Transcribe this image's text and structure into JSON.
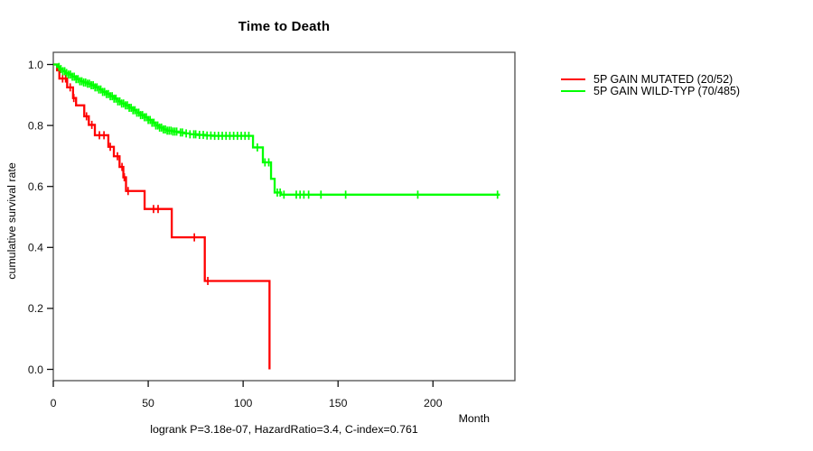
{
  "chart_data": {
    "type": "line",
    "chart_kind": "kaplan-meier-step-curves",
    "title": "Time to Death",
    "xlabel": "Month",
    "ylabel": "cumulative survival rate",
    "footnote": "logrank P=3.18e-07, HazardRatio=3.4, C-index=0.761",
    "x_ticks": [
      0,
      50,
      100,
      150,
      200
    ],
    "y_ticks": [
      0.0,
      0.2,
      0.4,
      0.6,
      0.8,
      1.0
    ],
    "xlim": [
      0,
      243
    ],
    "ylim": [
      0.0,
      1.0
    ],
    "grid": false,
    "legend_position": "right-outside",
    "legend": [
      {
        "label": "5P GAIN MUTATED (20/52)",
        "color": "#ff0000"
      },
      {
        "label": "5P GAIN WILD-TYP (70/485)",
        "color": "#00ff00"
      }
    ],
    "series": [
      {
        "name": "5P GAIN MUTATED (20/52)",
        "color": "#ff0000",
        "steps": [
          [
            0,
            1.0
          ],
          [
            2,
            0.981
          ],
          [
            3.2,
            0.954
          ],
          [
            7.3,
            0.925
          ],
          [
            10.4,
            0.89
          ],
          [
            12,
            0.866
          ],
          [
            16.3,
            0.83
          ],
          [
            18.7,
            0.802
          ],
          [
            21.9,
            0.768
          ],
          [
            29,
            0.73
          ],
          [
            31.9,
            0.699
          ],
          [
            34.9,
            0.664
          ],
          [
            36.9,
            0.63
          ],
          [
            38.3,
            0.585
          ],
          [
            48.1,
            0.526
          ],
          [
            62.4,
            0.433
          ],
          [
            79.8,
            0.29
          ],
          [
            113.9,
            0.0
          ]
        ],
        "censor_months": [
          4.9,
          6.5,
          8.9,
          10.8,
          17.5,
          20.3,
          24.3,
          26.7,
          30,
          33.8,
          36.2,
          37.4,
          39.4,
          52.8,
          55.2,
          74.3,
          81.4
        ],
        "end_month": 113.9
      },
      {
        "name": "5P GAIN WILD-TYP (70/485)",
        "color": "#00ff00",
        "steps": [
          [
            0,
            1.0
          ],
          [
            2,
            0.992
          ],
          [
            3.5,
            0.985
          ],
          [
            5,
            0.978
          ],
          [
            6.5,
            0.972
          ],
          [
            8,
            0.967
          ],
          [
            10,
            0.96
          ],
          [
            12,
            0.952
          ],
          [
            14,
            0.945
          ],
          [
            16,
            0.941
          ],
          [
            18,
            0.937
          ],
          [
            20,
            0.932
          ],
          [
            22,
            0.925
          ],
          [
            24,
            0.918
          ],
          [
            26,
            0.91
          ],
          [
            28,
            0.903
          ],
          [
            30,
            0.896
          ],
          [
            32,
            0.888
          ],
          [
            34,
            0.879
          ],
          [
            36,
            0.872
          ],
          [
            38,
            0.866
          ],
          [
            40,
            0.858
          ],
          [
            42,
            0.85
          ],
          [
            44,
            0.842
          ],
          [
            46,
            0.834
          ],
          [
            48,
            0.827
          ],
          [
            50,
            0.818
          ],
          [
            52,
            0.809
          ],
          [
            54,
            0.8
          ],
          [
            56,
            0.793
          ],
          [
            58,
            0.787
          ],
          [
            60,
            0.783
          ],
          [
            63,
            0.78
          ],
          [
            66,
            0.777
          ],
          [
            69,
            0.774
          ],
          [
            72,
            0.771
          ],
          [
            76,
            0.769
          ],
          [
            80,
            0.767
          ],
          [
            84,
            0.766
          ],
          [
            105.2,
            0.728
          ],
          [
            110.4,
            0.679
          ],
          [
            114.7,
            0.625
          ],
          [
            116.6,
            0.58
          ],
          [
            120,
            0.573
          ]
        ],
        "censor_months": [
          3,
          4,
          5,
          6,
          7,
          8,
          9,
          10,
          11,
          12,
          13,
          14,
          15,
          16,
          17,
          18,
          19,
          20,
          21,
          22,
          23,
          24,
          25,
          26,
          27,
          28,
          29,
          30,
          31,
          32,
          33,
          34,
          35,
          36,
          37,
          38,
          39,
          40,
          41,
          42,
          43,
          44,
          45,
          46,
          47,
          48,
          49,
          50,
          51,
          52,
          53,
          54,
          55,
          56,
          57,
          58,
          59,
          60,
          61,
          62,
          63,
          64,
          65,
          67,
          68,
          70,
          72,
          74,
          75,
          77,
          79,
          81,
          83,
          85,
          87,
          89,
          91,
          93,
          95,
          97,
          99,
          101,
          103,
          107.5,
          111.5,
          113.5,
          118,
          119.5,
          121.5,
          128,
          130,
          132,
          134.5,
          141,
          154,
          192,
          234
        ],
        "end_month": 235.3
      }
    ]
  }
}
